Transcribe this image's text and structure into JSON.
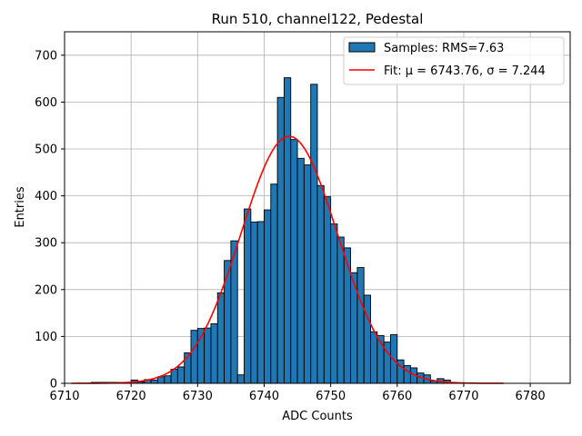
{
  "chart_data": {
    "type": "bar",
    "title": "Run 510, channel122, Pedestal",
    "xlabel": "ADC Counts",
    "ylabel": "Entries",
    "xlim": [
      6710.0,
      6786.0
    ],
    "ylim": [
      0,
      750
    ],
    "xticks": [
      6710,
      6720,
      6730,
      6740,
      6750,
      6760,
      6770,
      6780
    ],
    "yticks": [
      0,
      100,
      200,
      300,
      400,
      500,
      600,
      700
    ],
    "grid": true,
    "legend_position": "top-right",
    "bin_width": 1,
    "series": [
      {
        "name": "Samples: RMS=7.63",
        "kind": "histogram",
        "color": "#1f77b4",
        "edgecolor": "#000000",
        "bins": [
          6714,
          6715,
          6716,
          6717,
          6718,
          6719,
          6720,
          6721,
          6722,
          6723,
          6724,
          6725,
          6726,
          6727,
          6728,
          6729,
          6730,
          6731,
          6732,
          6733,
          6734,
          6735,
          6736,
          6737,
          6738,
          6739,
          6740,
          6741,
          6742,
          6743,
          6744,
          6745,
          6746,
          6747,
          6748,
          6749,
          6750,
          6751,
          6752,
          6753,
          6754,
          6755,
          6756,
          6757,
          6758,
          6759,
          6760,
          6761,
          6762,
          6763,
          6764,
          6765,
          6766,
          6767,
          6768
        ],
        "values": [
          2,
          2,
          2,
          2,
          2,
          2,
          7,
          3,
          8,
          7,
          14,
          16,
          30,
          35,
          65,
          113,
          117,
          118,
          127,
          193,
          262,
          304,
          18,
          372,
          344,
          345,
          370,
          425,
          610,
          652,
          520,
          480,
          466,
          638,
          422,
          398,
          340,
          312,
          289,
          236,
          247,
          188,
          110,
          102,
          88,
          104,
          50,
          38,
          33,
          22,
          18,
          5,
          10,
          7,
          2
        ]
      },
      {
        "name": "Fit: μ = 6743.76, σ = 7.244",
        "kind": "gaussian-fit",
        "color": "#ff0000",
        "mu": 6743.76,
        "sigma": 7.244,
        "amplitude": 527,
        "x_range": [
          6711,
          6776
        ]
      }
    ]
  }
}
